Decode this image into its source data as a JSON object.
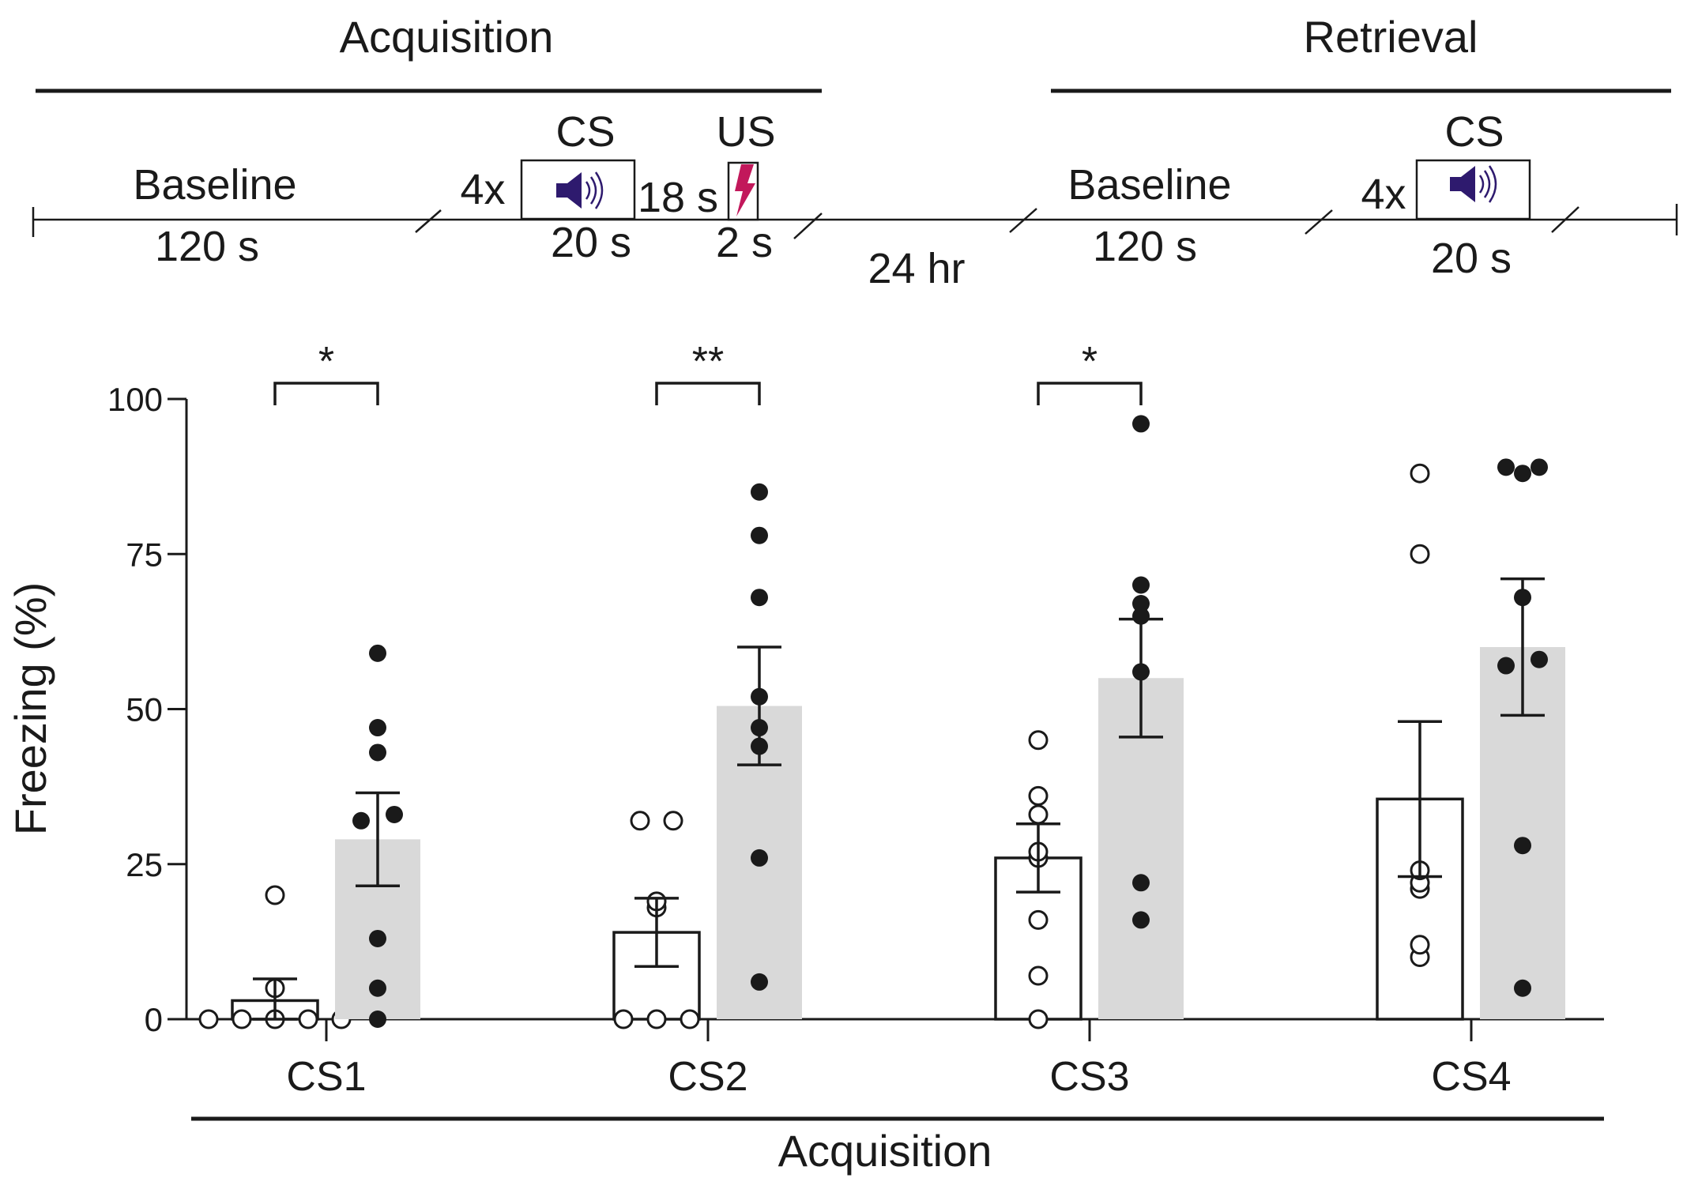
{
  "colors": {
    "ink": "#1a1a1a",
    "bar_control": "#ffffff",
    "bar_fear": "#d9d9d9",
    "speaker": "#2e1a6e",
    "shock": "#c2185b"
  },
  "protocol": {
    "acquisition_header": "Acquisition",
    "retrieval_header": "Retrieval",
    "acq": {
      "baseline_label": "Baseline",
      "baseline_duration": "120 s",
      "repeat": "4x",
      "cs_label": "CS",
      "cs_duration": "20 s",
      "cs_icon": "speaker-icon",
      "gap_label": "18 s",
      "us_label": "US",
      "us_duration": "2 s",
      "us_icon": "lightning-bolt-icon"
    },
    "interval_label": "24 hr",
    "ret": {
      "baseline_label": "Baseline",
      "baseline_duration": "120 s",
      "repeat": "4x",
      "cs_label": "CS",
      "cs_duration": "20 s",
      "cs_icon": "speaker-icon"
    }
  },
  "chart_data": {
    "type": "bar",
    "ylabel": "Freezing (%)",
    "xlabel": "Acquisition",
    "ylim": [
      0,
      100
    ],
    "yticks": [
      0,
      25,
      50,
      75,
      100
    ],
    "categories": [
      "CS1",
      "CS2",
      "CS3",
      "CS4"
    ],
    "series": [
      {
        "style": "open",
        "means": [
          3,
          14,
          26,
          35.5
        ],
        "sem": [
          3.5,
          5.5,
          5.5,
          12.5
        ],
        "points": [
          [
            0,
            0,
            0,
            0,
            0,
            5,
            20
          ],
          [
            0,
            0,
            0,
            18,
            19,
            32,
            32
          ],
          [
            0,
            7,
            16,
            26,
            27,
            33,
            36,
            45
          ],
          [
            10,
            12,
            21,
            22,
            24,
            75,
            88
          ]
        ]
      },
      {
        "style": "filled",
        "means": [
          29,
          50.5,
          55,
          60
        ],
        "sem": [
          7.5,
          9.5,
          9.5,
          11
        ],
        "points": [
          [
            0,
            5,
            13,
            32,
            33,
            43,
            47,
            59
          ],
          [
            6,
            26,
            44,
            47,
            52,
            68,
            78,
            85
          ],
          [
            16,
            22,
            56,
            65,
            67,
            70,
            96
          ],
          [
            5,
            28,
            57,
            58,
            68,
            88,
            89,
            89
          ]
        ]
      }
    ],
    "significance": [
      "*",
      "**",
      "*",
      null
    ]
  }
}
